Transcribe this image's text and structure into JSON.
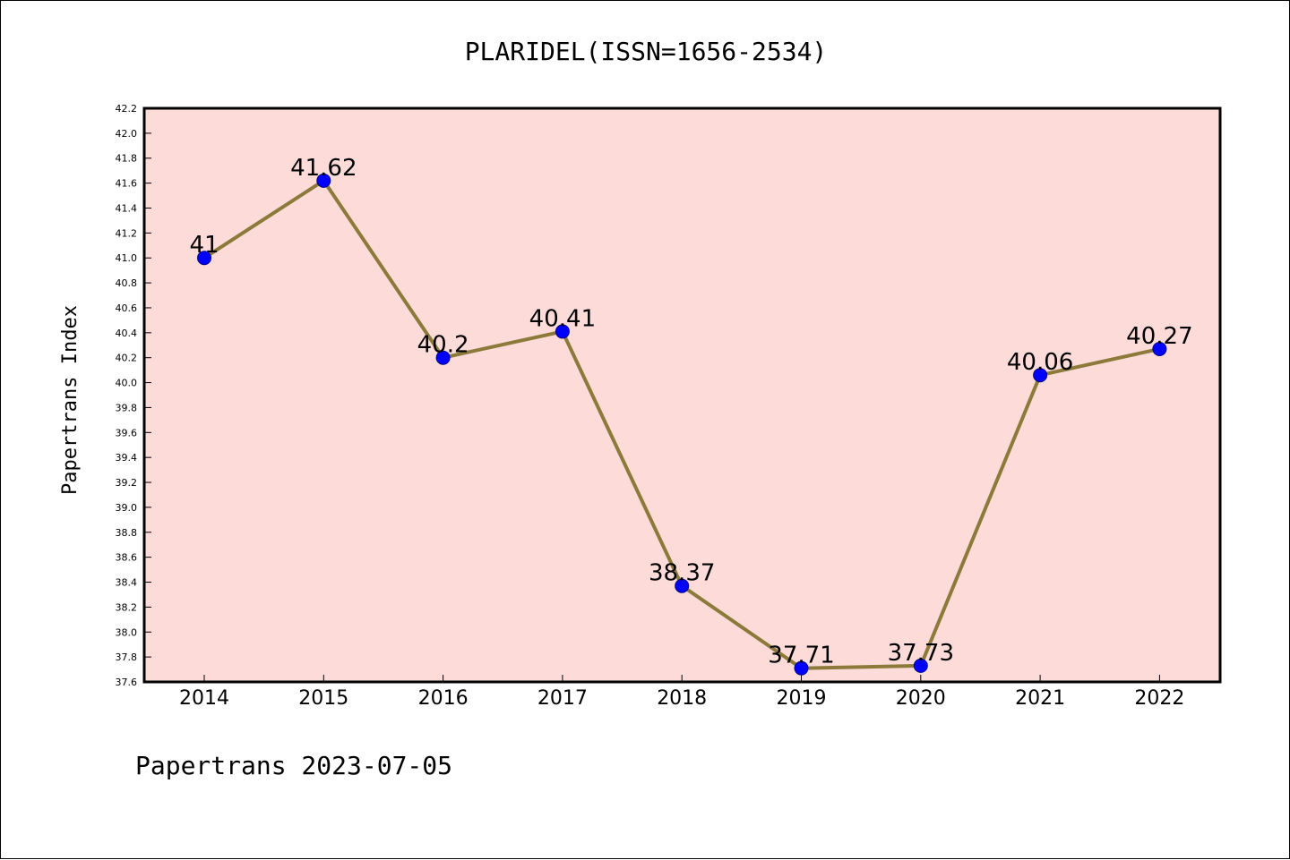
{
  "chart_data": {
    "type": "line",
    "title": "PLARIDEL(ISSN=1656-2534)",
    "ylabel": "Papertrans Index",
    "xlabel": "",
    "footer": "Papertrans 2023-07-05",
    "categories": [
      "2014",
      "2015",
      "2016",
      "2017",
      "2018",
      "2019",
      "2020",
      "2021",
      "2022"
    ],
    "values": [
      41,
      41.62,
      40.2,
      40.41,
      38.37,
      37.71,
      37.73,
      40.06,
      40.27
    ],
    "data_labels": [
      "41",
      "41.62",
      "40.2",
      "40.41",
      "38.37",
      "37.71",
      "37.73",
      "40.06",
      "40.27"
    ],
    "ylim": [
      37.6,
      42.2
    ],
    "ytick_step": 0.2,
    "grid": false,
    "colors": {
      "plot_background": "#fddbd9",
      "line": "#8b7a3a",
      "marker": "#0000ff",
      "marker_edge": "#00008b"
    }
  }
}
